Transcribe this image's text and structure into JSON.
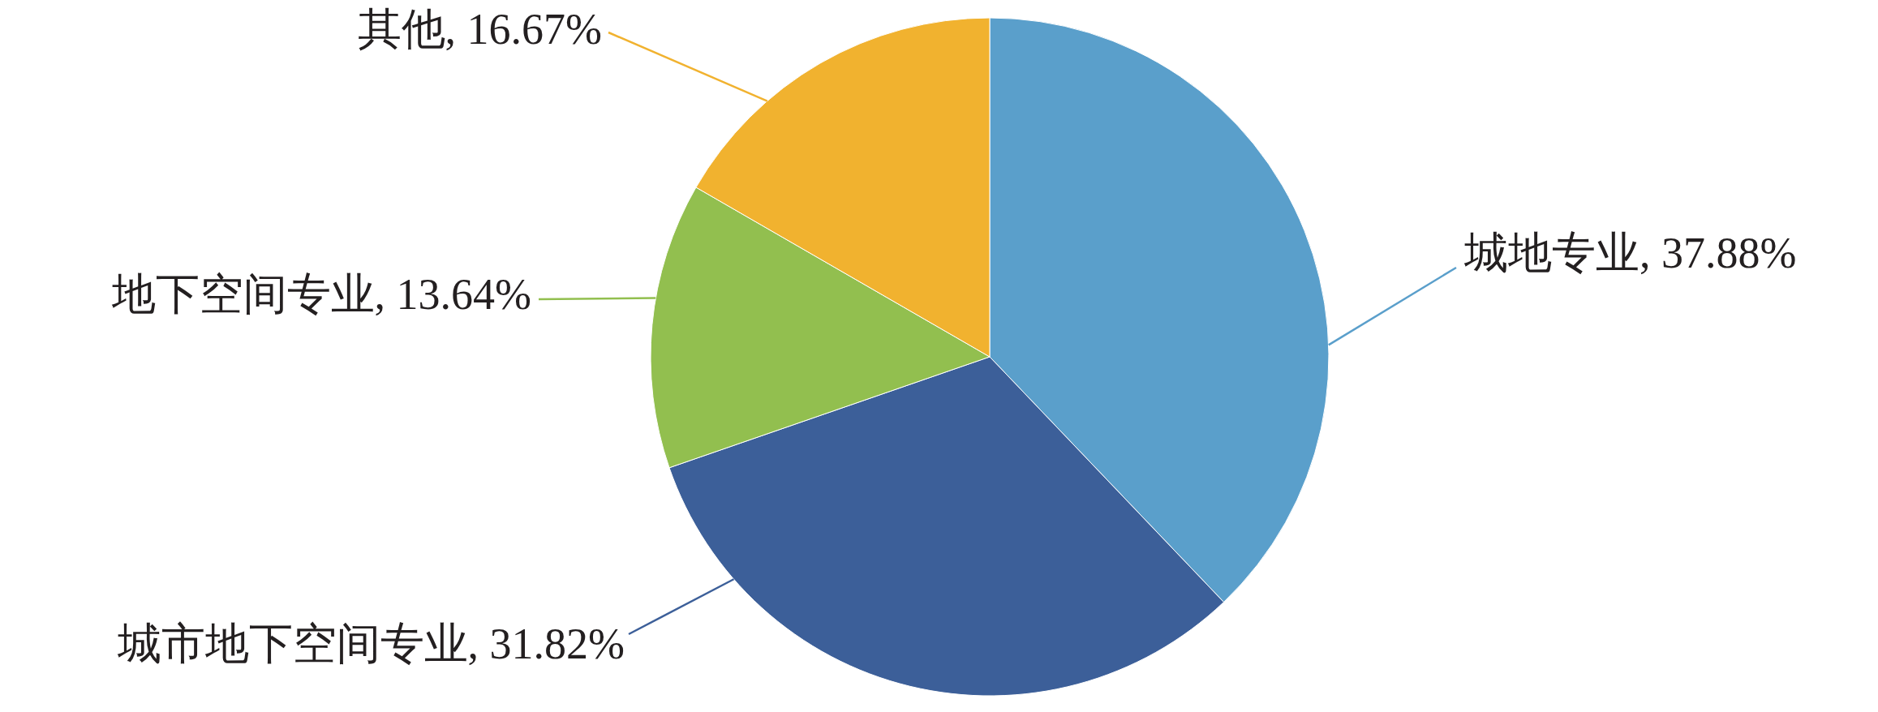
{
  "chart_data": {
    "type": "pie",
    "categories": [
      "城地专业",
      "城市地下空间专业",
      "地下空间专业",
      "其他"
    ],
    "values": [
      37.88,
      31.82,
      13.64,
      16.67
    ],
    "value_labels": [
      "37.88%",
      "31.82%",
      "13.64%",
      "16.67%"
    ],
    "colors": [
      "#5a9fcb",
      "#3c5f99",
      "#92bf4f",
      "#f1b22f"
    ]
  }
}
